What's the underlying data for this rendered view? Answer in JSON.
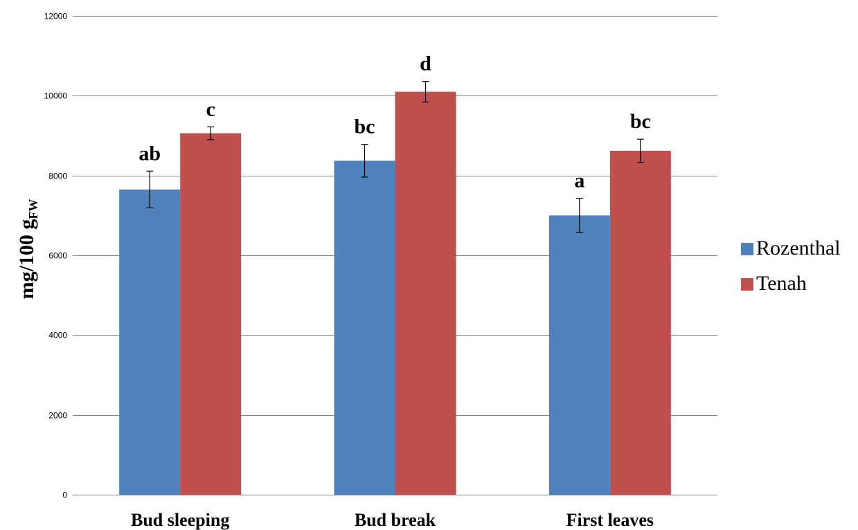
{
  "chart_data": {
    "type": "bar",
    "categories": [
      "Bud sleeping",
      "Bud break",
      "First leaves"
    ],
    "ylabel": "mg/100 g",
    "ylabel_subscript": "FW",
    "ylim": [
      0,
      12000
    ],
    "yticks": [
      0,
      2000,
      4000,
      6000,
      8000,
      10000,
      12000
    ],
    "grid": true,
    "legend_position": "right",
    "series": [
      {
        "name": "Rozenthal",
        "color": "#4F81BD",
        "values": [
          7650,
          8370,
          7000
        ],
        "errors": [
          460,
          410,
          430
        ],
        "labels": [
          "ab",
          "bc",
          "a"
        ]
      },
      {
        "name": "Tenah",
        "color": "#C0504D",
        "values": [
          9060,
          10100,
          8620
        ],
        "errors": [
          160,
          260,
          290
        ],
        "labels": [
          "c",
          "d",
          "bc"
        ]
      }
    ]
  }
}
